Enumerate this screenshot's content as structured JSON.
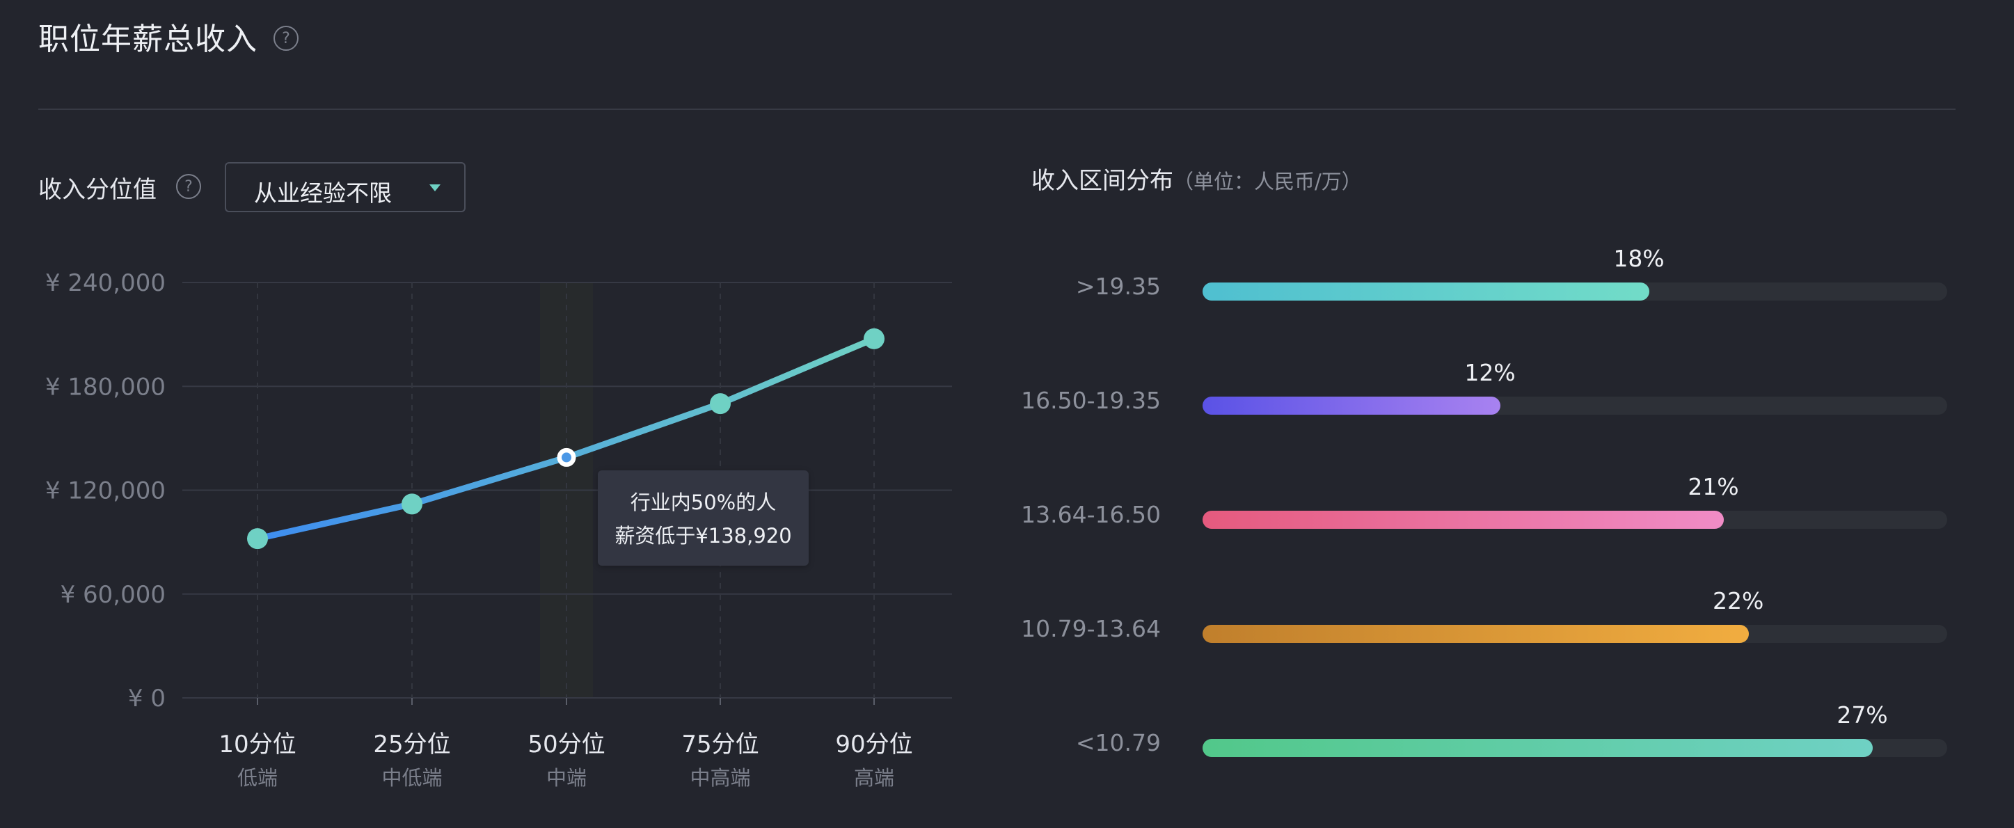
{
  "header": {
    "title": "职位年薪总收入",
    "help_glyph": "?"
  },
  "percentile": {
    "label": "收入分位值",
    "help_glyph": "?",
    "dropdown": {
      "selected": "从业经验不限",
      "accent": "#6fd1c4"
    }
  },
  "tooltip": {
    "line1": "行业内50%的人",
    "line2": "薪资低于¥138,920"
  },
  "distribution": {
    "title": "收入区间分布",
    "unit": "（单位：人民币/万）"
  },
  "chart_data": [
    {
      "type": "line",
      "title": "",
      "categories": [
        "10分位",
        "25分位",
        "50分位",
        "75分位",
        "90分位"
      ],
      "sublabels": [
        "低端",
        "中低端",
        "中端",
        "中高端",
        "高端"
      ],
      "y_ticks": [
        "¥ 240,000",
        "¥ 180,000",
        "¥ 120,000",
        "¥ 60,000",
        "¥ 0"
      ],
      "values": [
        92000,
        112000,
        138920,
        170000,
        207500
      ],
      "ylim": [
        0,
        240000
      ],
      "grid": true,
      "highlight_category": "50分位",
      "colors": {
        "line_start": "#3e8df0",
        "line_end": "#6fd1c4",
        "marker": "#6fd1c4",
        "highlight_band": "#272a2c"
      }
    },
    {
      "type": "bar",
      "orientation": "horizontal",
      "title": "收入区间分布",
      "categories": [
        ">19.35",
        "16.50-19.35",
        "13.64-16.50",
        "10.79-13.64",
        "<10.79"
      ],
      "values": [
        18,
        12,
        21,
        22,
        27
      ],
      "value_labels": [
        "18%",
        "12%",
        "21%",
        "22%",
        "27%"
      ],
      "xlim": [
        0,
        30
      ],
      "colors": [
        [
          "#4fbfd0",
          "#72dcc8"
        ],
        [
          "#5a52e6",
          "#a882f0"
        ],
        [
          "#e55a7e",
          "#f08cc6"
        ],
        [
          "#c07f2c",
          "#f1ad40"
        ],
        [
          "#52c88a",
          "#6fd1c4"
        ]
      ]
    }
  ]
}
